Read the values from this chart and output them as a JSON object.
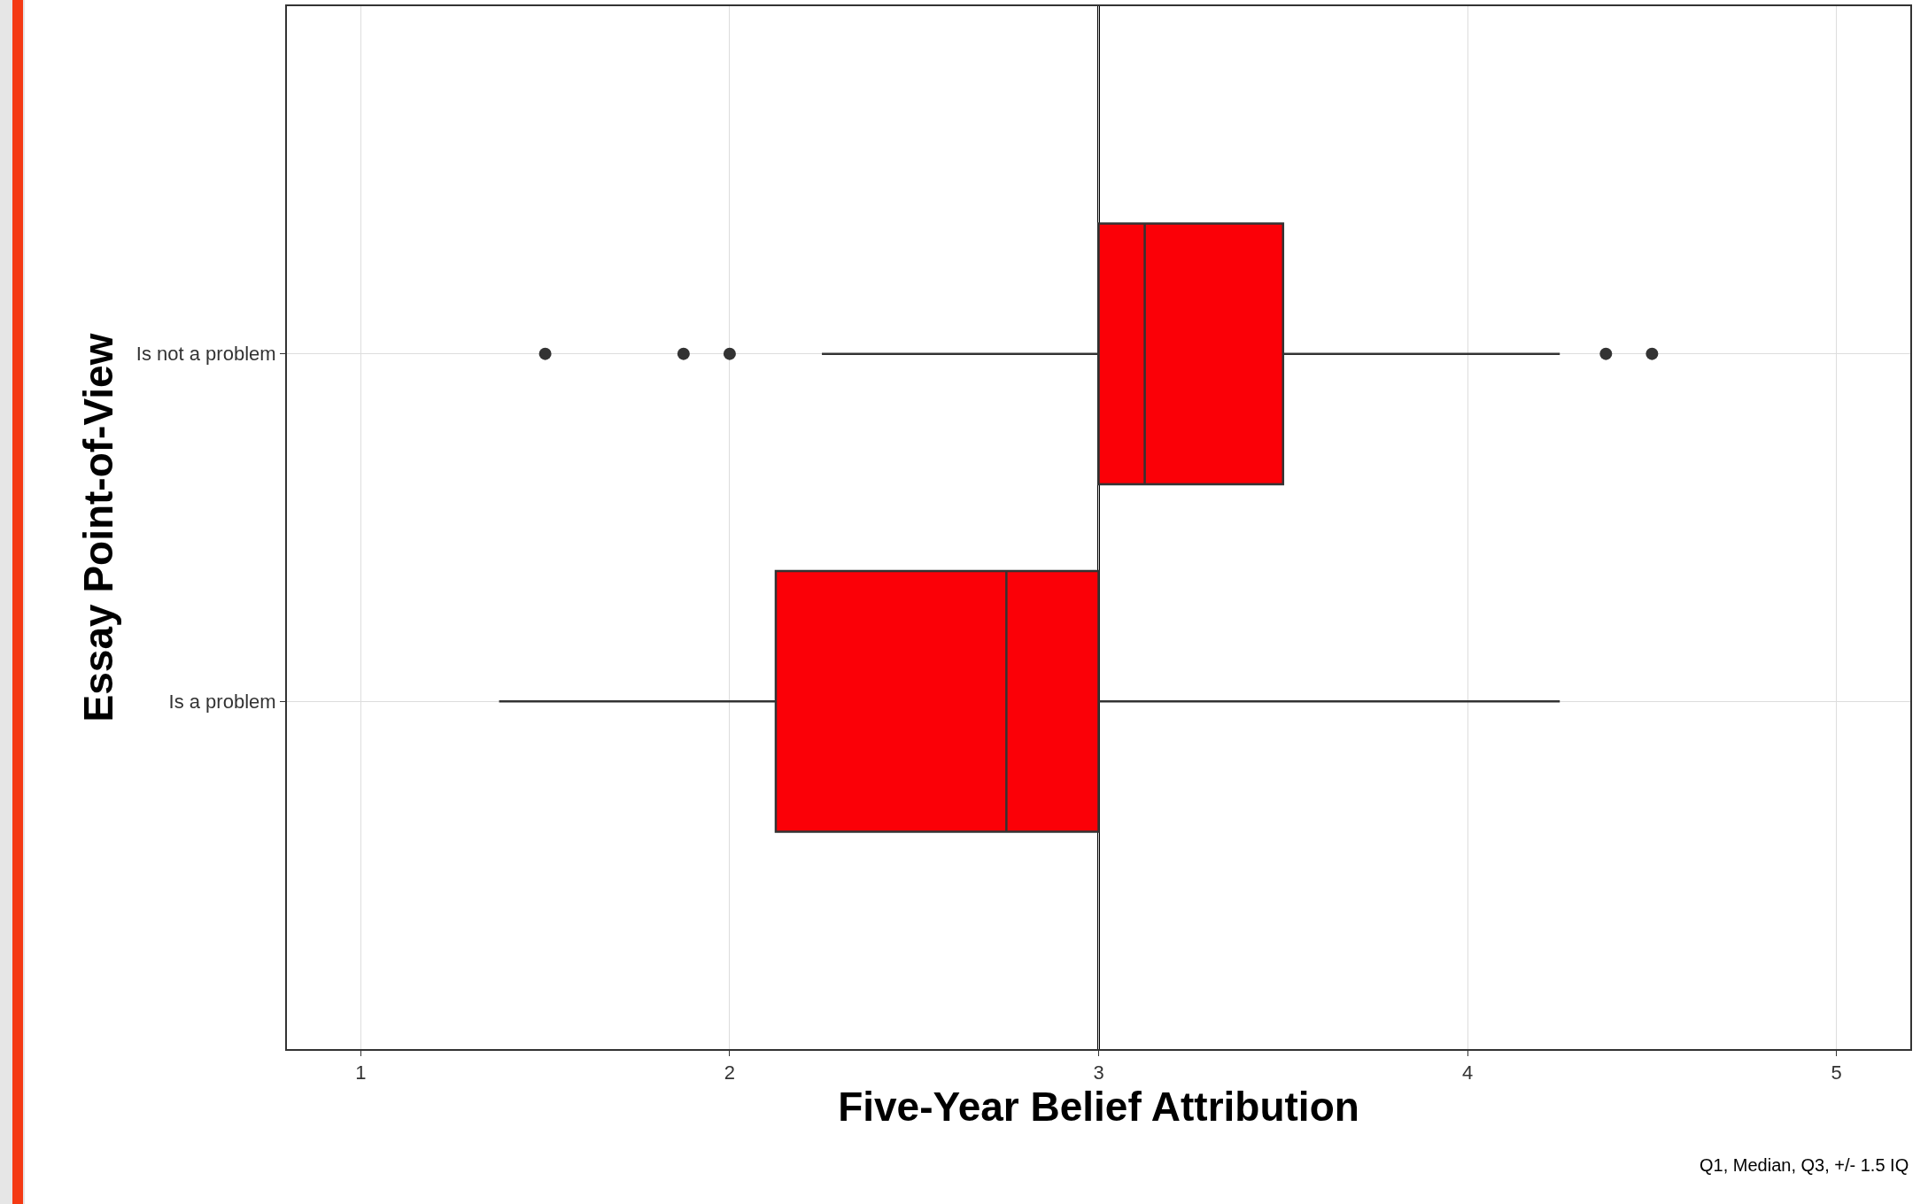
{
  "chart_data": {
    "type": "box",
    "orientation": "horizontal",
    "xlabel": "Five-Year Belief Attribution",
    "ylabel": "Essay Point-of-View",
    "categories": [
      "Is not a problem",
      "Is a problem"
    ],
    "boxes": [
      {
        "low": 2.25,
        "q1": 3,
        "median": 3.125,
        "q3": 3.5,
        "high": 4.25,
        "outliers": [
          1.5,
          1.875,
          2,
          4.375,
          4.5
        ]
      },
      {
        "low": 1.375,
        "q1": 2.125,
        "median": 2.75,
        "q3": 3,
        "high": 4.25
      }
    ],
    "color": "#fb0007",
    "xlim": [
      0.8,
      5.2
    ],
    "xticks": [
      1,
      2,
      3,
      4,
      5
    ],
    "grid": true,
    "ref_lines": [
      {
        "axis": "x",
        "value": 3,
        "color": "#000000"
      }
    ],
    "annotations": [
      "Q1, Median, Q3, +/- 1.5 IQ"
    ]
  }
}
